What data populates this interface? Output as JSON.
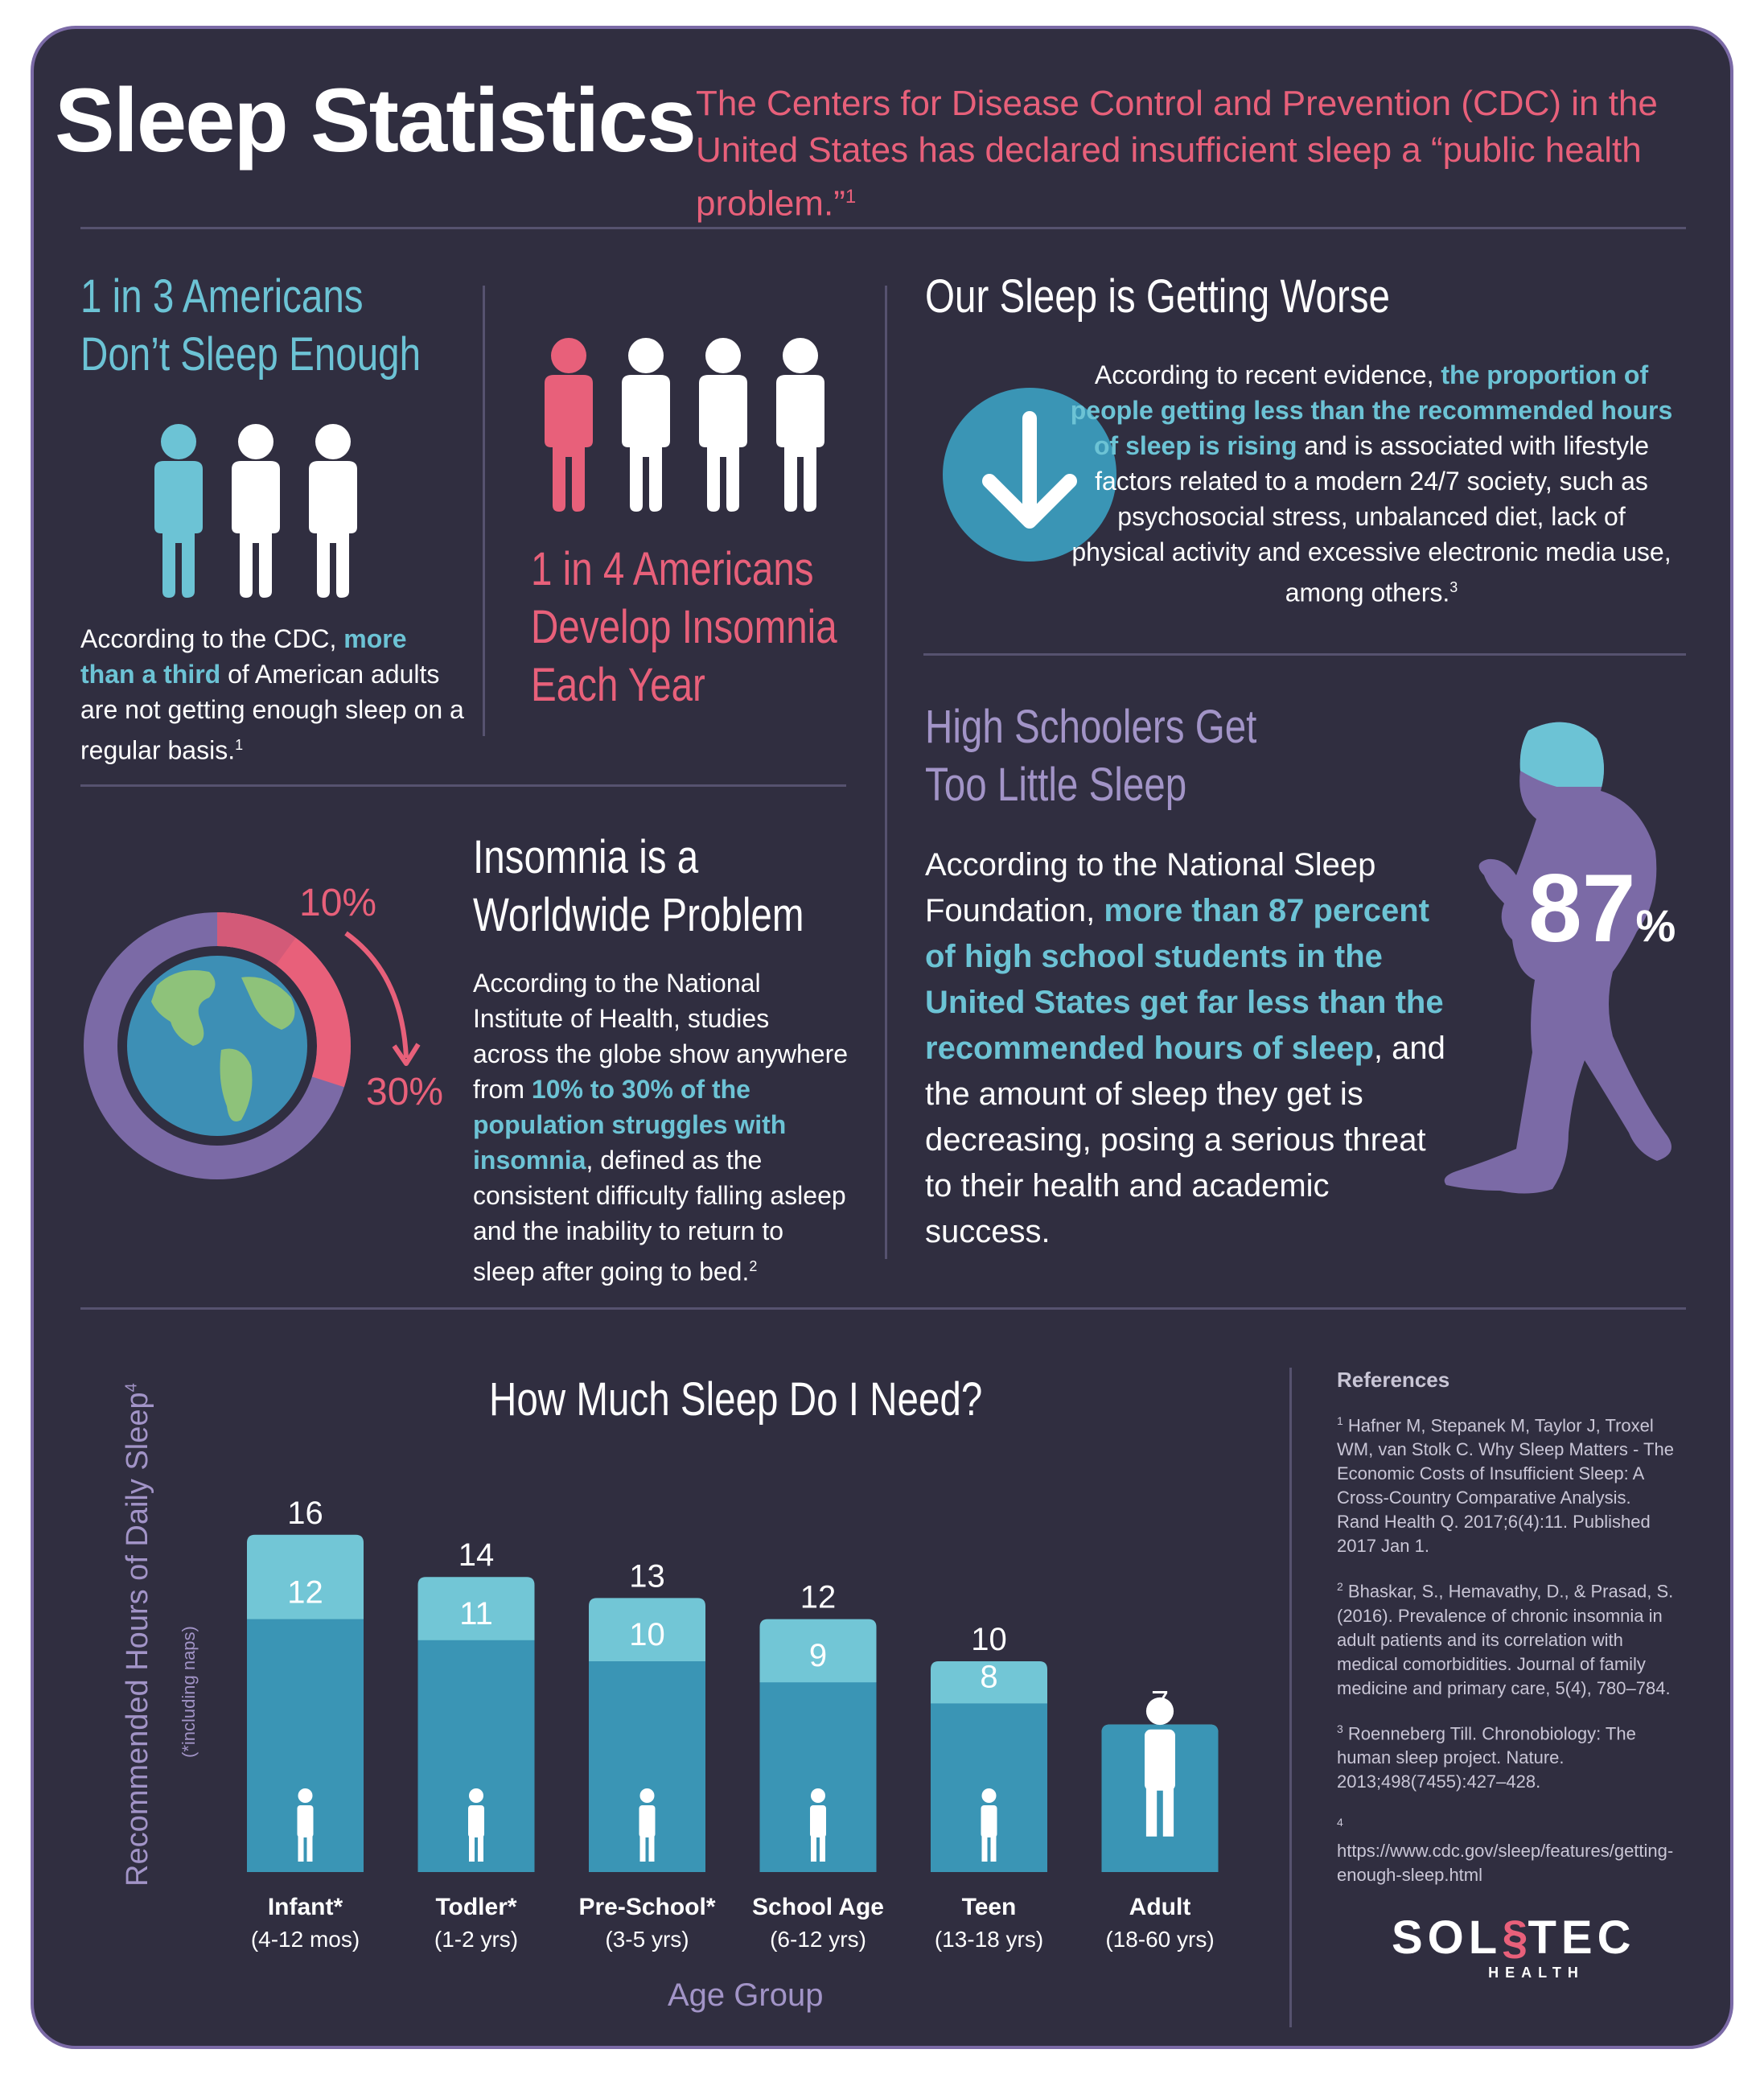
{
  "header": {
    "title": "Sleep Statistics",
    "intro": "The Centers for Disease Control and Prevention (CDC) in the United States has declared insufficient sleep a “public health problem.”",
    "intro_ref": "1"
  },
  "stat_1_in_3": {
    "heading_line1": "1 in 3 Americans",
    "heading_line2": "Don’t Sleep Enough",
    "text_before": "According to the CDC,",
    "text_highlight": "more than a third",
    "text_after": "of American adults are not getting enough sleep on a regular basis.",
    "ref": "1"
  },
  "stat_1_in_4": {
    "heading_line1": "1 in 4 Americans",
    "heading_line2": "Develop Insomnia",
    "heading_line3": "Each Year"
  },
  "worse": {
    "heading": "Our Sleep is Getting Worse",
    "text_before": "According to recent evidence,",
    "text_highlight": "the proportion of people getting less than the recommended hours of sleep is rising",
    "text_after": "and is associated with lifestyle factors related to a modern 24/7 society, such as psychosocial stress, unbalanced diet, lack of physical activity and excessive electronic media use, among others.",
    "ref": "3"
  },
  "insomnia": {
    "heading_line1": "Insomnia is a",
    "heading_line2": "Worldwide Problem",
    "pct_low": "10%",
    "pct_high": "30%",
    "low_fraction": 0.1,
    "high_fraction": 0.3,
    "text_before": "According to the National Institute of Health, studies across the globe show anywhere from",
    "text_highlight": "10% to 30% of the population struggles with insomnia",
    "text_after": ", defined as the consistent difficulty falling asleep and the inability to return to sleep after going to bed.",
    "ref": "2"
  },
  "high_school": {
    "heading_line1": "High Schoolers Get",
    "heading_line2": "Too Little Sleep",
    "big_number": "87",
    "big_unit": "%",
    "text_before": "According to the National Sleep Foundation,",
    "text_highlight": "more than 87 percent of high school students in the United States get far less than the recommended hours of sleep",
    "text_after": ", and the amount of sleep they get is decreasing, posing a serious threat to their health and academic success."
  },
  "chart_data": {
    "type": "bar",
    "title": "How Much Sleep Do I Need?",
    "xlabel": "Age Group",
    "ylabel": "Recommended Hours of Daily Sleep",
    "ylabel_ref": "4",
    "ylabel_note": "(*including naps)",
    "categories": [
      "Infant*",
      "Todler*",
      "Pre-School*",
      "School Age",
      "Teen",
      "Adult"
    ],
    "category_ranges": [
      "(4-12 mos)",
      "(1-2 yrs)",
      "(3-5 yrs)",
      "(6-12 yrs)",
      "(13-18 yrs)",
      "(18-60 yrs)"
    ],
    "series": [
      {
        "values": [
          12,
          11,
          10,
          9,
          8,
          7
        ]
      },
      {
        "values": [
          16,
          14,
          13,
          12,
          10,
          7
        ]
      }
    ],
    "colors": {
      "min": "#3a95b5",
      "max": "#72c6d6"
    },
    "ylim": [
      0,
      16
    ],
    "icons": [
      "infant-icon",
      "toddler-icon",
      "preschooler-icon",
      "school-child-icon",
      "teen-icon",
      "adult-icon"
    ]
  },
  "references": {
    "heading": "References",
    "items": [
      {
        "num": "1",
        "text": "Hafner M, Stepanek M, Taylor J, Troxel WM, van Stolk C. Why Sleep Matters - The Economic Costs of Insufficient Sleep: A Cross-Country Comparative Analysis. Rand Health Q. 2017;6(4):11. Published 2017 Jan 1."
      },
      {
        "num": "2",
        "text": "Bhaskar, S., Hemavathy, D., & Prasad, S. (2016). Prevalence of chronic insomnia in adult patients and its correlation with medical comorbidities. Journal of family medicine and primary care, 5(4), 780–784."
      },
      {
        "num": "3",
        "text": "Roenneberg Till. Chronobiology: The human sleep project. Nature. 2013;498(7455):427–428."
      },
      {
        "num": "4",
        "text": "https://www.cdc.gov/sleep/features/getting-enough-sleep.html"
      }
    ]
  },
  "logo": {
    "left": "SOL",
    "right": "TEC",
    "sub": "HEALTH"
  },
  "palette": {
    "background": "#302e40",
    "teal": "#6cc3d5",
    "pink": "#e8607a",
    "lavender": "#a294c7",
    "blue": "#3a95b5"
  }
}
